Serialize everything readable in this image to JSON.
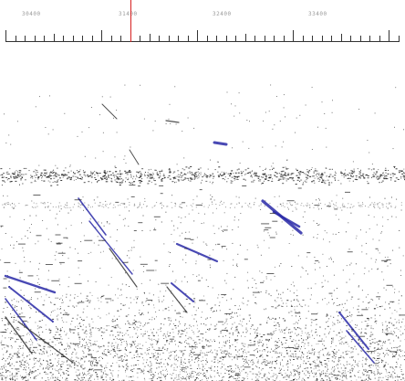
{
  "ruler": {
    "tick_labels": [
      "30400",
      "31400",
      "32400",
      "33400"
    ],
    "cursor_color": "#d62020"
  },
  "plot": {
    "background": "#ffffff",
    "dot_color": "#222222",
    "streak_color": "#2a2aa8"
  }
}
